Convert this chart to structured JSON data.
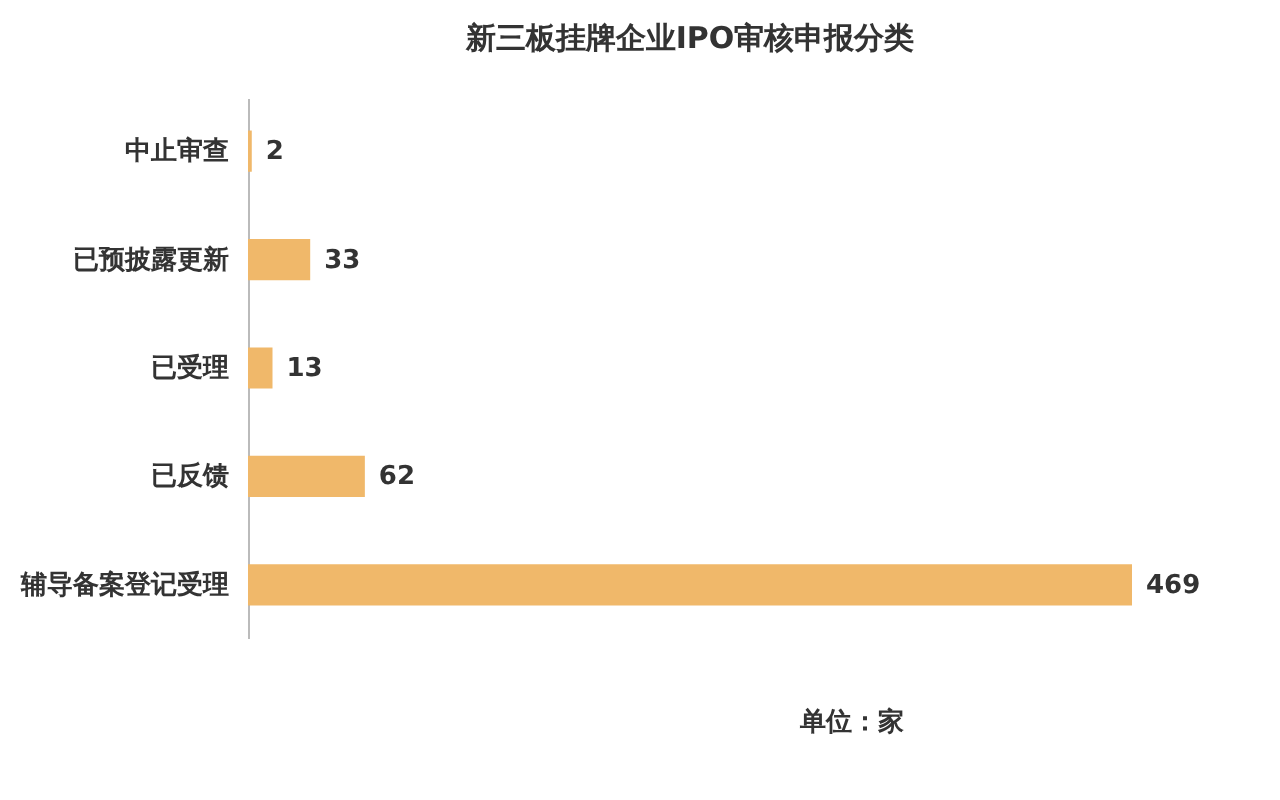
{
  "chart_data": {
    "type": "bar",
    "orientation": "horizontal",
    "title": "新三板挂牌企业IPO审核申报分类",
    "categories": [
      "中止审查",
      "已预披露更新",
      "已受理",
      "已反馈",
      "辅导备案登记受理"
    ],
    "values": [
      2,
      33,
      13,
      62,
      469
    ],
    "color": "#f0b86a",
    "data_labels": true,
    "annotations": [
      "单位：家"
    ]
  }
}
